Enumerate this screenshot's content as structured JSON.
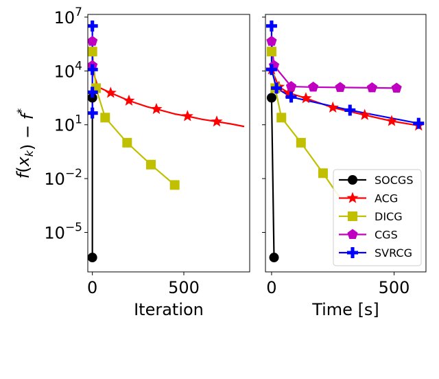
{
  "chart_data": [
    {
      "type": "line",
      "panel": "left",
      "xlabel": "Iteration",
      "ylabel": "f(x_k) − f*",
      "yscale": "log",
      "xlim": [
        -25,
        860
      ],
      "ylim_exp": [
        -7.2,
        7.15
      ],
      "xticks": [
        0,
        500
      ],
      "xtick_labels": [
        "0",
        "500"
      ],
      "yticks_exp": [
        7,
        4,
        1,
        -2,
        -5
      ],
      "ytick_bases": [
        "10",
        "10",
        "10",
        "10",
        "10"
      ],
      "ytick_exps": [
        "7",
        "4",
        "1",
        "−2",
        "−5"
      ],
      "series": [
        {
          "name": "SOCGS",
          "color": "#000000",
          "marker": "circle",
          "points": [
            [
              0,
              320.0
            ],
            [
              0,
              4e-07
            ]
          ],
          "show_markers": true
        },
        {
          "name": "ACG",
          "color": "#ff0000",
          "marker": "star",
          "points": [
            [
              0,
              12000.0
            ],
            [
              30,
              1300.0
            ],
            [
              100,
              600.0
            ],
            [
              200,
              220.0
            ],
            [
              300,
              100.0
            ],
            [
              350,
              75.0
            ],
            [
              450,
              40.0
            ],
            [
              520,
              30.0
            ],
            [
              600,
              20.0
            ],
            [
              680,
              15.0
            ],
            [
              760,
              11.0
            ],
            [
              830,
              8.0
            ]
          ],
          "marker_indices": [
            2,
            3,
            5,
            7,
            9
          ]
        },
        {
          "name": "DICG",
          "color": "#c0c000",
          "marker": "square",
          "points": [
            [
              0,
              120000.0
            ],
            [
              20,
              1100.0
            ],
            [
              70,
              25.0
            ],
            [
              190,
              1.0
            ],
            [
              320,
              0.06
            ],
            [
              450,
              0.0044
            ]
          ],
          "show_markers": true
        },
        {
          "name": "CGS",
          "color": "#c000c0",
          "marker": "pentagon",
          "points": [
            [
              0,
              450000.0
            ],
            [
              0,
              20000.0
            ]
          ],
          "show_markers": true
        },
        {
          "name": "SVRCG",
          "color": "#0000ff",
          "marker": "plus",
          "points": [
            [
              0,
              3200000.0
            ],
            [
              0,
              12000.0
            ],
            [
              0,
              650.0
            ],
            [
              0,
              45.0
            ]
          ],
          "show_markers": true
        }
      ]
    },
    {
      "type": "line",
      "panel": "right",
      "xlabel": "Time [s]",
      "yscale": "log",
      "xlim": [
        -25,
        630
      ],
      "ylim_exp": [
        -7.2,
        7.15
      ],
      "xticks": [
        0,
        500
      ],
      "xtick_labels": [
        "0",
        "500"
      ],
      "legend": {
        "location": "lower right",
        "entries": [
          "SOCGS",
          "ACG",
          "DICG",
          "CGS",
          "SVRCG"
        ]
      },
      "series": [
        {
          "name": "SOCGS",
          "color": "#000000",
          "marker": "circle",
          "points": [
            [
              0,
              320.0
            ],
            [
              10,
              4e-07
            ]
          ],
          "show_markers": true
        },
        {
          "name": "ACG",
          "color": "#ff0000",
          "marker": "star",
          "points": [
            [
              0,
              12000.0
            ],
            [
              30,
              1300.0
            ],
            [
              70,
              600.0
            ],
            [
              140,
              300.0
            ],
            [
              250,
              90.0
            ],
            [
              380,
              35.0
            ],
            [
              490,
              16.0
            ],
            [
              600,
              9.0
            ]
          ],
          "show_markers": true
        },
        {
          "name": "DICG",
          "color": "#c0c000",
          "marker": "square",
          "points": [
            [
              0,
              120000.0
            ],
            [
              15,
              1100.0
            ],
            [
              40,
              25.0
            ],
            [
              120,
              1.0
            ],
            [
              210,
              0.02
            ],
            [
              280,
              0.0008
            ]
          ],
          "marker_indices": [
            0,
            1,
            2,
            3,
            4
          ]
        },
        {
          "name": "CGS",
          "color": "#c000c0",
          "marker": "pentagon",
          "points": [
            [
              0,
              450000.0
            ],
            [
              10,
              20000.0
            ],
            [
              80,
              1350.0
            ],
            [
              170,
              1250.0
            ],
            [
              280,
              1200.0
            ],
            [
              410,
              1150.0
            ],
            [
              510,
              1100.0
            ]
          ],
          "show_markers": true
        },
        {
          "name": "SVRCG",
          "color": "#0000ff",
          "marker": "plus",
          "points": [
            [
              0,
              3200000.0
            ],
            [
              0,
              12000.0
            ],
            [
              20,
              1100.0
            ],
            [
              80,
              350.0
            ],
            [
              320,
              65.0
            ],
            [
              600,
              12.0
            ]
          ],
          "show_markers": true
        }
      ]
    }
  ]
}
